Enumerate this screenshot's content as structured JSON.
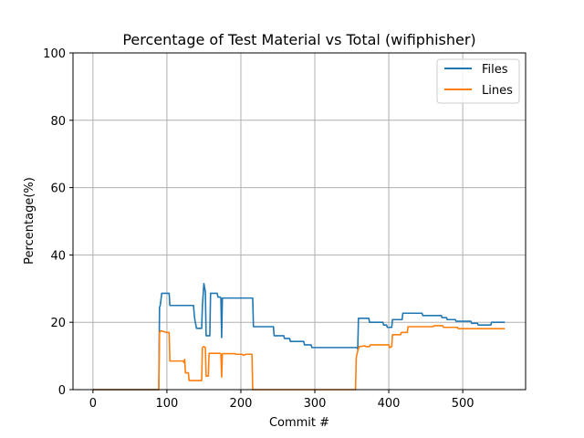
{
  "chart_data": {
    "type": "line",
    "title": "Percentage of Test Material vs Total (wifiphisher)",
    "xlabel": "Commit #",
    "ylabel": "Percentage(%)",
    "xlim": [
      -27,
      585
    ],
    "ylim": [
      0,
      100
    ],
    "xticks": [
      0,
      100,
      200,
      300,
      400,
      500
    ],
    "yticks": [
      0,
      20,
      40,
      60,
      80,
      100
    ],
    "grid": true,
    "legend_position": "top-right",
    "series": [
      {
        "name": "Files",
        "color": "#1f77b4",
        "points": [
          [
            0,
            0
          ],
          [
            89,
            0
          ],
          [
            90,
            24.5
          ],
          [
            91,
            25
          ],
          [
            93,
            28.6
          ],
          [
            103,
            28.6
          ],
          [
            104,
            25
          ],
          [
            136,
            25
          ],
          [
            137,
            22
          ],
          [
            138,
            20.5
          ],
          [
            140,
            18.2
          ],
          [
            147,
            18.2
          ],
          [
            148,
            25
          ],
          [
            150,
            31.5
          ],
          [
            152,
            29
          ],
          [
            153,
            16
          ],
          [
            158,
            16
          ],
          [
            159,
            28.6
          ],
          [
            168,
            28.6
          ],
          [
            169,
            27.5
          ],
          [
            172,
            27.5
          ],
          [
            173,
            27.2
          ],
          [
            174,
            15.5
          ],
          [
            175,
            27.2
          ],
          [
            216,
            27.2
          ],
          [
            217,
            18.7
          ],
          [
            244,
            18.7
          ],
          [
            245,
            16
          ],
          [
            258,
            16
          ],
          [
            259,
            15.2
          ],
          [
            266,
            15.2
          ],
          [
            267,
            14.3
          ],
          [
            285,
            14.3
          ],
          [
            286,
            13.3
          ],
          [
            295,
            13.3
          ],
          [
            296,
            12.5
          ],
          [
            357,
            12.5
          ],
          [
            358,
            12
          ],
          [
            359,
            21.2
          ],
          [
            373,
            21.2
          ],
          [
            374,
            20
          ],
          [
            392,
            20
          ],
          [
            393,
            19.2
          ],
          [
            397,
            19.2
          ],
          [
            398,
            18.5
          ],
          [
            404,
            18.5
          ],
          [
            405,
            20.8
          ],
          [
            418,
            20.8
          ],
          [
            419,
            22.7
          ],
          [
            445,
            22.7
          ],
          [
            446,
            22
          ],
          [
            471,
            22
          ],
          [
            472,
            21.4
          ],
          [
            478,
            21.4
          ],
          [
            479,
            20.8
          ],
          [
            490,
            20.8
          ],
          [
            491,
            20.3
          ],
          [
            511,
            20.3
          ],
          [
            512,
            19.7
          ],
          [
            520,
            19.7
          ],
          [
            521,
            19.2
          ],
          [
            538,
            19.2
          ],
          [
            539,
            20
          ],
          [
            557,
            20
          ]
        ]
      },
      {
        "name": "Lines",
        "color": "#ff7f0e",
        "points": [
          [
            0,
            0
          ],
          [
            89,
            0
          ],
          [
            90,
            17
          ],
          [
            92,
            17.5
          ],
          [
            99,
            17
          ],
          [
            103,
            17
          ],
          [
            104,
            8.5
          ],
          [
            122,
            8.5
          ],
          [
            123,
            8
          ],
          [
            124,
            9
          ],
          [
            125,
            5
          ],
          [
            129,
            5
          ],
          [
            130,
            2.7
          ],
          [
            147,
            2.7
          ],
          [
            148,
            12.5
          ],
          [
            150,
            12.8
          ],
          [
            152,
            12.5
          ],
          [
            153,
            4
          ],
          [
            156,
            4
          ],
          [
            157,
            10.8
          ],
          [
            172,
            10.8
          ],
          [
            173,
            10.5
          ],
          [
            174,
            3.7
          ],
          [
            175,
            10.7
          ],
          [
            192,
            10.7
          ],
          [
            193,
            10.5
          ],
          [
            202,
            10.5
          ],
          [
            203,
            10.2
          ],
          [
            207,
            10.5
          ],
          [
            215,
            10.5
          ],
          [
            216,
            0
          ],
          [
            355,
            0
          ],
          [
            356,
            9.5
          ],
          [
            358,
            11.5
          ],
          [
            360,
            12.8
          ],
          [
            368,
            13
          ],
          [
            369,
            12.8
          ],
          [
            374,
            12.8
          ],
          [
            375,
            13.3
          ],
          [
            400,
            13.3
          ],
          [
            401,
            12.5
          ],
          [
            404,
            12.8
          ],
          [
            405,
            16.3
          ],
          [
            416,
            16.3
          ],
          [
            417,
            17
          ],
          [
            425,
            17
          ],
          [
            426,
            18.7
          ],
          [
            460,
            18.7
          ],
          [
            461,
            19
          ],
          [
            473,
            19
          ],
          [
            474,
            18.5
          ],
          [
            493,
            18.5
          ],
          [
            494,
            18.1
          ],
          [
            557,
            18.1
          ]
        ]
      }
    ]
  }
}
